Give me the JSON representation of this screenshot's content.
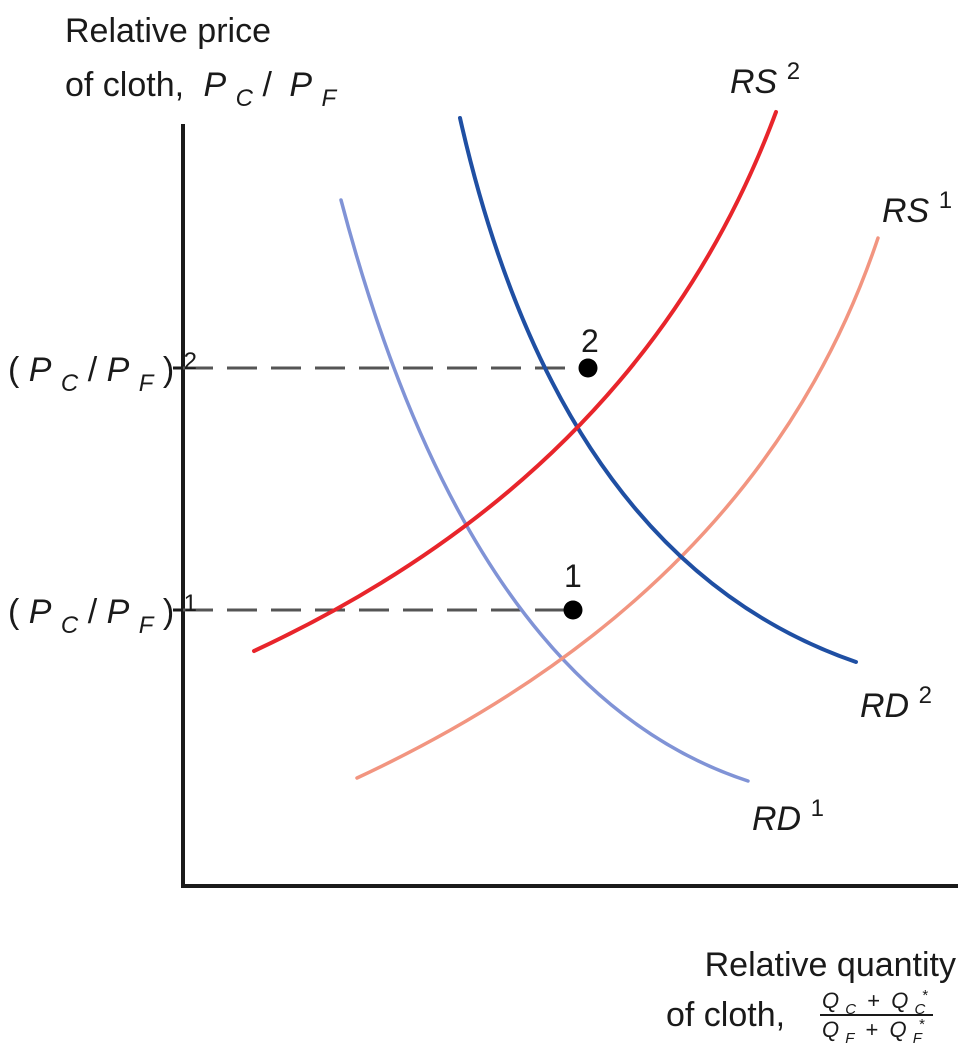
{
  "axes": {
    "y_label_line1": "Relative price",
    "y_label_line2_prefix": "of cloth,",
    "y_label_var1": "P",
    "y_label_var1_sub": "C",
    "y_label_slash": "/",
    "y_label_var2": "P",
    "y_label_var2_sub": "F",
    "x_label_line1": "Relative quantity",
    "x_label_line2_prefix": "of cloth,",
    "x_num_var1": "Q",
    "x_num_var1_sub": "C",
    "x_num_plus": "+",
    "x_num_var2": "Q",
    "x_num_var2_sub": "C",
    "x_num_var2_sup": "*",
    "x_den_var1": "Q",
    "x_den_var1_sub": "F",
    "x_den_plus": "+",
    "x_den_var2": "Q",
    "x_den_var2_sub": "F",
    "x_den_var2_sup": "*"
  },
  "price_levels": [
    {
      "open": "(",
      "var1": "P",
      "sub1": "C",
      "slash": "/",
      "var2": "P",
      "sub2": "F",
      "close": ")",
      "sup": "2"
    },
    {
      "open": "(",
      "var1": "P",
      "sub1": "C",
      "slash": "/",
      "var2": "P",
      "sub2": "F",
      "close": ")",
      "sup": "1"
    }
  ],
  "curves": {
    "RS2": {
      "base": "RS",
      "sup": "2",
      "color": "#e8252b"
    },
    "RS1": {
      "base": "RS",
      "sup": "1",
      "color": "#f29580"
    },
    "RD2": {
      "base": "RD",
      "sup": "2",
      "color": "#1f4fa3"
    },
    "RD1": {
      "base": "RD",
      "sup": "1",
      "color": "#8093d6"
    }
  },
  "points": [
    {
      "label": "2"
    },
    {
      "label": "1"
    }
  ],
  "colors": {
    "axis": "#1a1a1a",
    "dash": "#555555",
    "point": "#000000"
  }
}
